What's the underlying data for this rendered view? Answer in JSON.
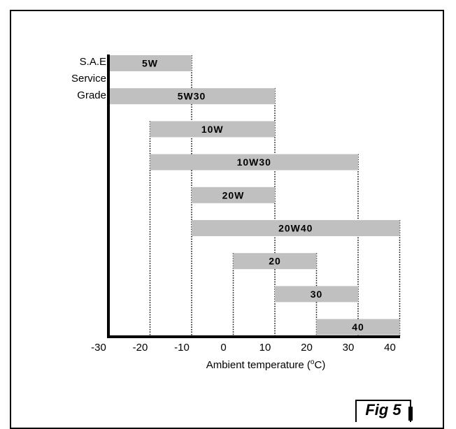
{
  "chart_data": {
    "type": "bar",
    "orientation": "horizontal-range",
    "y_labels": [
      "S.A.E",
      "Service",
      "Grade"
    ],
    "xlabel": "Ambient temperature (",
    "xlabel_unit": "o",
    "xlabel_end": "C)",
    "xlim": [
      -30,
      42
    ],
    "x_ticks": [
      -30,
      -20,
      -10,
      0,
      10,
      20,
      30,
      40
    ],
    "x_tick_labels": [
      "-30",
      "-20",
      "-10",
      "0",
      "10",
      "20",
      "30",
      "40"
    ],
    "grid": "dotted vertical lines at bar boundaries",
    "bar_color": "#c0c0c0",
    "bars": [
      {
        "label": "5W",
        "start": -30,
        "end": -10
      },
      {
        "label": "5W30",
        "start": -30,
        "end": 10
      },
      {
        "label": "10W",
        "start": -20,
        "end": 10
      },
      {
        "label": "10W30",
        "start": -20,
        "end": 30
      },
      {
        "label": "20W",
        "start": -10,
        "end": 10
      },
      {
        "label": "20W40",
        "start": -10,
        "end": 40
      },
      {
        "label": "20",
        "start": 0,
        "end": 20
      },
      {
        "label": "30",
        "start": 10,
        "end": 30
      },
      {
        "label": "40",
        "start": 20,
        "end": 40
      }
    ]
  },
  "figure": {
    "label": "Fig 5"
  }
}
